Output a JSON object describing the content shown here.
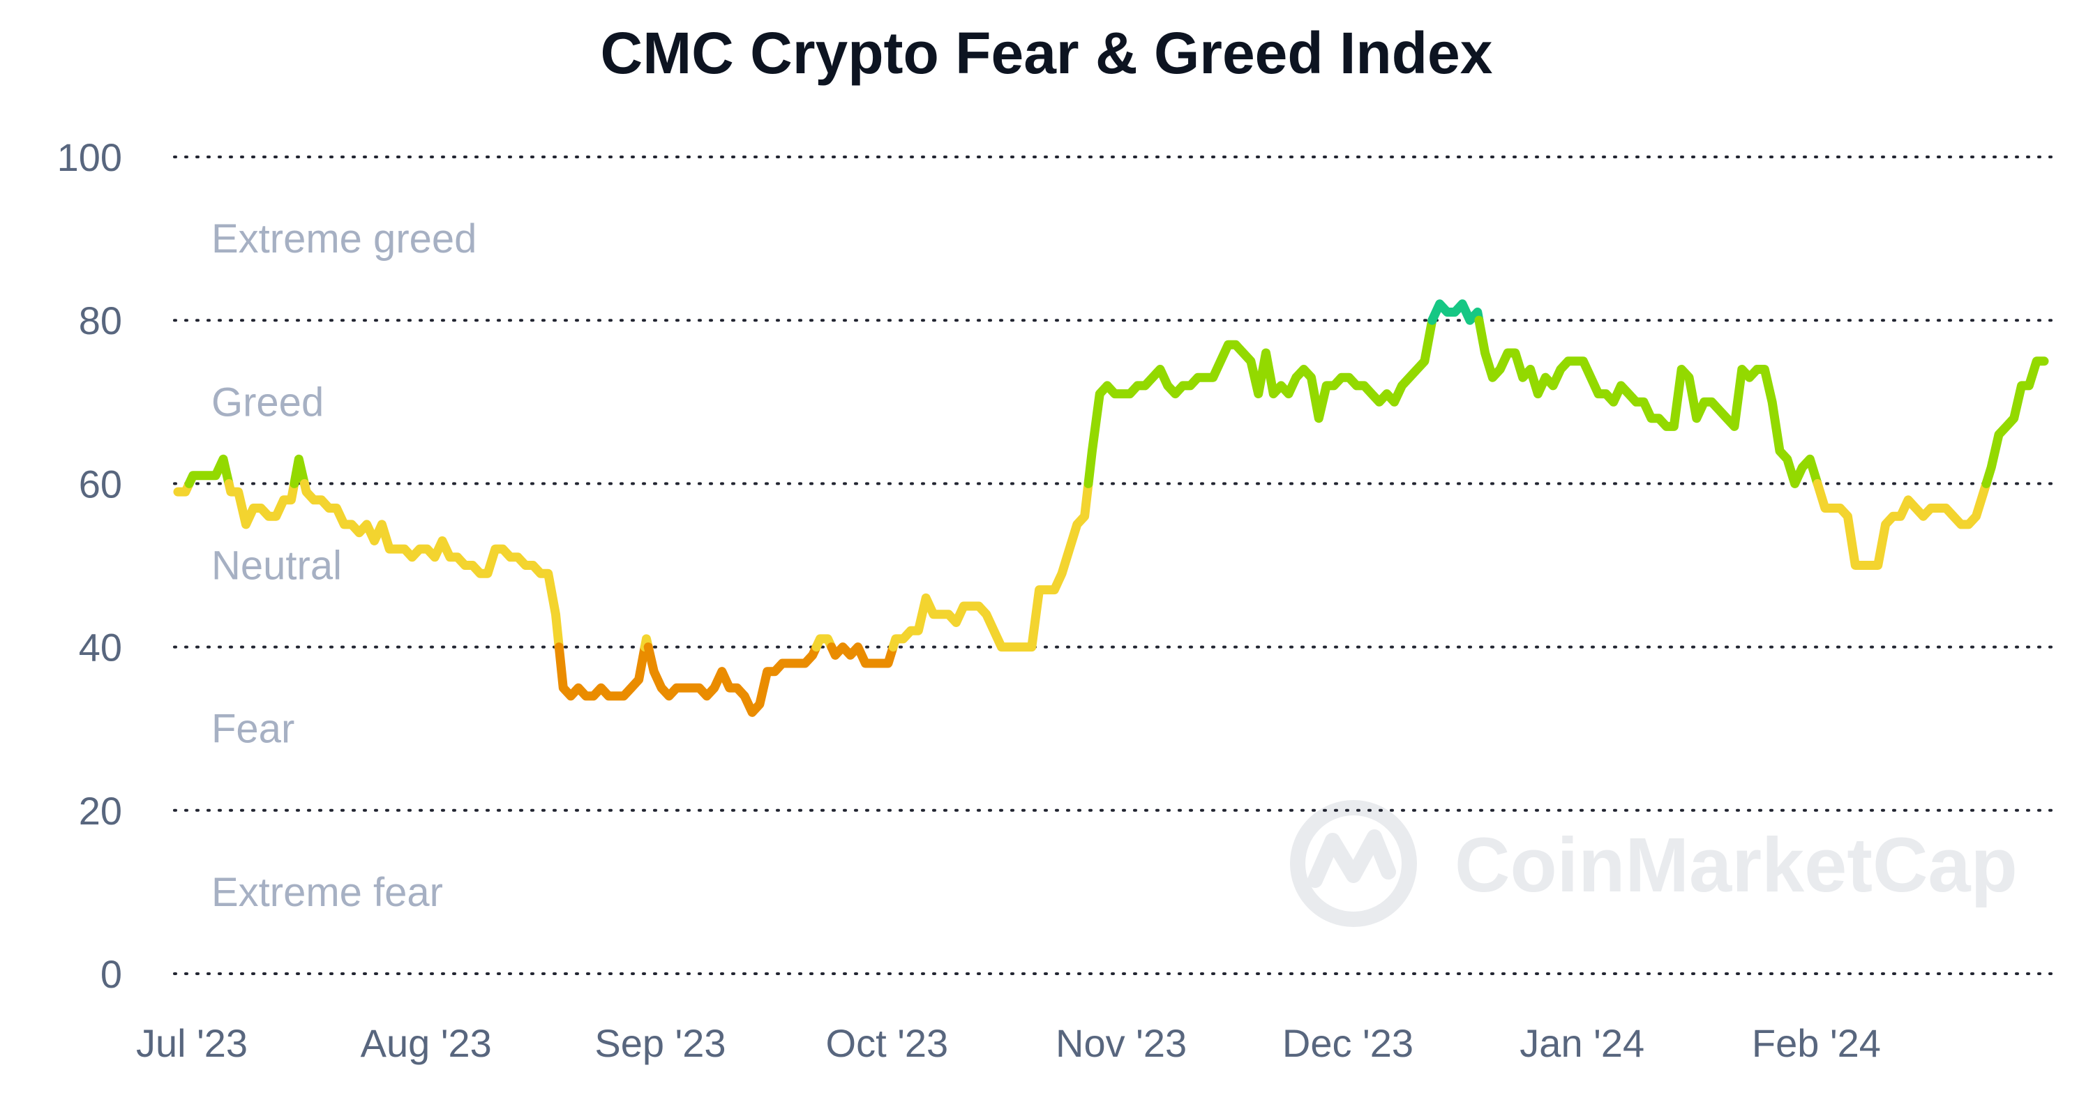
{
  "chart_data": {
    "type": "line",
    "title": "CMC Crypto Fear & Greed Index",
    "xlabel": "",
    "ylabel": "",
    "ylim": [
      0,
      100
    ],
    "y_ticks": [
      "0",
      "20",
      "40",
      "60",
      "80",
      "100"
    ],
    "x_ticks": [
      "Jul '23",
      "Aug '23",
      "Sep '23",
      "Oct '23",
      "Nov '23",
      "Dec '23",
      "Jan '24",
      "Feb '24"
    ],
    "grid": true,
    "zones": [
      {
        "label": "Extreme greed",
        "from": 80,
        "to": 100,
        "color": "#16c784"
      },
      {
        "label": "Greed",
        "from": 60,
        "to": 80,
        "color": "#93d900"
      },
      {
        "label": "Neutral",
        "from": 40,
        "to": 60,
        "color": "#f3d42f"
      },
      {
        "label": "Fear",
        "from": 20,
        "to": 40,
        "color": "#ea8c00"
      },
      {
        "label": "Extreme fear",
        "from": 0,
        "to": 20,
        "color": "#ea3943"
      }
    ],
    "series": [
      {
        "name": "Fear & Greed Index",
        "start_date": "2023-07-01",
        "step_days": 1,
        "values": [
          59,
          59,
          61,
          61,
          61,
          61,
          63,
          59,
          59,
          55,
          57,
          57,
          56,
          56,
          58,
          58,
          63,
          59,
          58,
          58,
          57,
          57,
          55,
          55,
          54,
          55,
          53,
          55,
          52,
          52,
          52,
          51,
          52,
          52,
          51,
          53,
          51,
          51,
          50,
          50,
          49,
          49,
          52,
          52,
          51,
          51,
          50,
          50,
          49,
          49,
          44,
          35,
          34,
          35,
          34,
          34,
          35,
          34,
          34,
          34,
          35,
          36,
          41,
          37,
          35,
          34,
          35,
          35,
          35,
          35,
          34,
          35,
          37,
          35,
          35,
          34,
          32,
          33,
          37,
          37,
          38,
          38,
          38,
          38,
          39,
          41,
          41,
          39,
          40,
          39,
          40,
          38,
          38,
          38,
          38,
          41,
          41,
          42,
          42,
          46,
          44,
          44,
          44,
          43,
          45,
          45,
          45,
          44,
          42,
          40,
          40,
          40,
          40,
          40,
          47,
          47,
          47,
          49,
          52,
          55,
          56,
          64,
          71,
          72,
          71,
          71,
          71,
          72,
          72,
          73,
          74,
          72,
          71,
          72,
          72,
          73,
          73,
          73,
          75,
          77,
          77,
          76,
          75,
          71,
          76,
          71,
          72,
          71,
          73,
          74,
          73,
          68,
          72,
          72,
          73,
          73,
          72,
          72,
          71,
          70,
          71,
          70,
          72,
          73,
          74,
          75,
          80,
          82,
          81,
          81,
          82,
          80,
          81,
          76,
          73,
          74,
          76,
          76,
          73,
          74,
          71,
          73,
          72,
          74,
          75,
          75,
          75,
          73,
          71,
          71,
          70,
          72,
          71,
          70,
          70,
          68,
          68,
          67,
          67,
          74,
          73,
          68,
          70,
          70,
          69,
          68,
          67,
          74,
          73,
          74,
          74,
          70,
          64,
          63,
          60,
          62,
          63,
          60,
          57,
          57,
          57,
          56,
          50,
          50,
          50,
          50,
          55,
          56,
          56,
          58,
          57,
          56,
          57,
          57,
          57,
          56,
          55,
          55,
          56,
          59,
          62,
          66,
          67,
          68,
          72,
          72,
          75,
          75
        ]
      }
    ]
  },
  "watermark": {
    "text": "CoinMarketCap",
    "icon": "coinmarketcap-logo-icon"
  },
  "colors": {
    "title": "#0d1421",
    "tick": "#58667e",
    "zone_label": "#a6b0c3",
    "grid": "#222531",
    "watermark": "#e9ebee"
  }
}
